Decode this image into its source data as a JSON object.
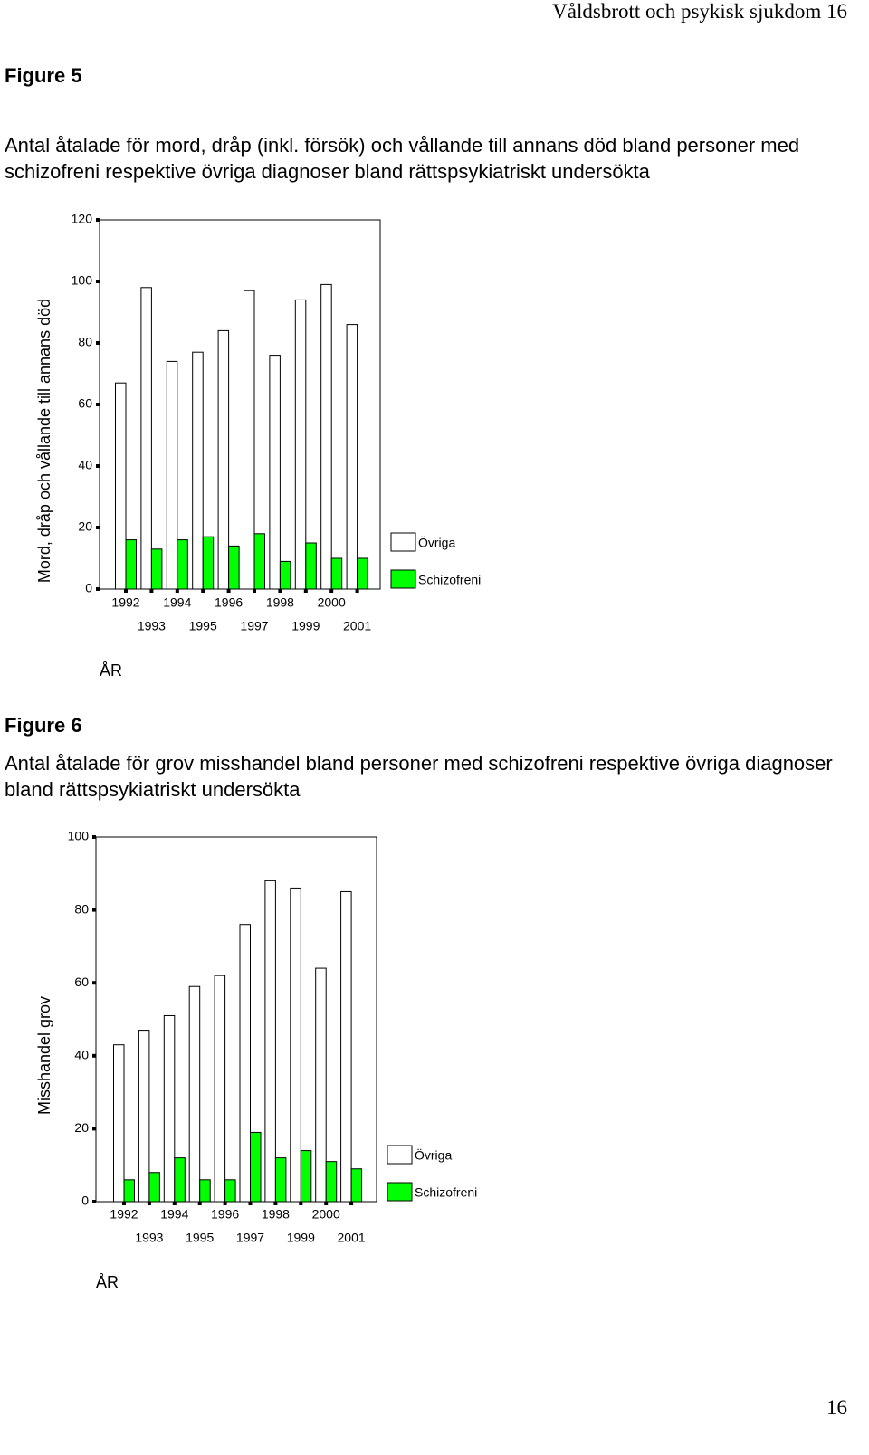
{
  "header": "Våldsbrott och psykisk sjukdom 16",
  "page_number": "16",
  "chart_data": [
    {
      "type": "bar",
      "title": "Figure 5",
      "subtitle": "Antal åtalade för mord, dråp (inkl. försök) och vållande till annans död bland personer med schizofreni respektive övriga diagnoser bland rättspsykiatriskt undersökta",
      "y_label": "Mord, dråp och vållande till annans död",
      "x_label": "ÅR",
      "categories": [
        "1992",
        "1993",
        "1994",
        "1995",
        "1996",
        "1997",
        "1998",
        "1999",
        "2000",
        "2001"
      ],
      "series": [
        {
          "name": "Övriga",
          "color": "#ffffff",
          "values": [
            67,
            98,
            74,
            77,
            84,
            97,
            76,
            94,
            99,
            86
          ]
        },
        {
          "name": "Schizofreni",
          "color": "#00ff00",
          "values": [
            16,
            13,
            16,
            17,
            14,
            18,
            9,
            15,
            10,
            10
          ]
        }
      ],
      "ylim": [
        0,
        120
      ],
      "yticks": [
        0,
        20,
        40,
        60,
        80,
        100,
        120
      ]
    },
    {
      "type": "bar",
      "title": "Figure 6",
      "subtitle": "Antal åtalade för grov misshandel bland personer med schizofreni respektive övriga diagnoser bland rättspsykiatriskt undersökta",
      "y_label": "Misshandel grov",
      "x_label": "ÅR",
      "categories": [
        "1992",
        "1993",
        "1994",
        "1995",
        "1996",
        "1997",
        "1998",
        "1999",
        "2000",
        "2001"
      ],
      "series": [
        {
          "name": "Övriga",
          "color": "#ffffff",
          "values": [
            43,
            47,
            51,
            59,
            62,
            76,
            88,
            86,
            64,
            85
          ]
        },
        {
          "name": "Schizofreni",
          "color": "#00ff00",
          "values": [
            6,
            8,
            12,
            6,
            6,
            19,
            12,
            14,
            11,
            9
          ]
        }
      ],
      "ylim": [
        0,
        100
      ],
      "yticks": [
        0,
        20,
        40,
        60,
        80,
        100
      ]
    }
  ]
}
